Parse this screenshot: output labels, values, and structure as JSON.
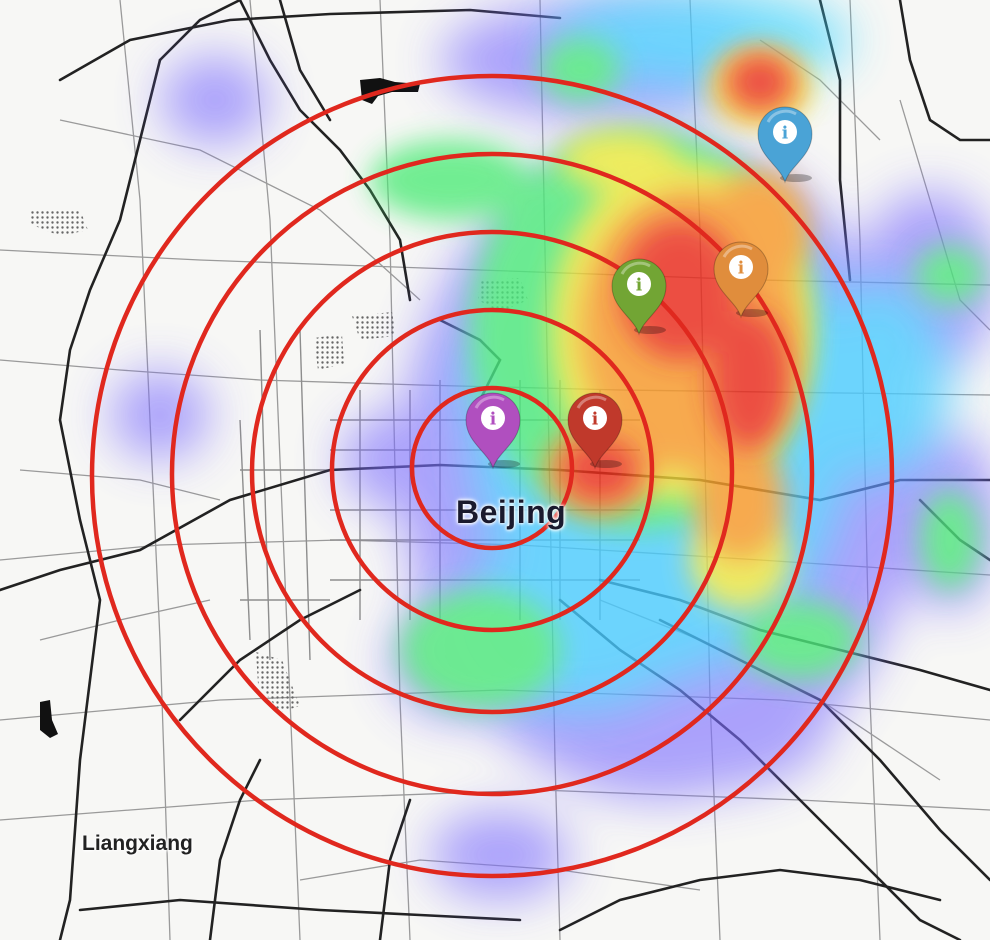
{
  "map": {
    "labels": {
      "major_city": "Beijing",
      "minor_city": "Liangxiang"
    },
    "range_rings": {
      "count": 5,
      "color": "#e0281e"
    },
    "heatmap": {
      "gradient": [
        "#6a5cff",
        "#3fd0ff",
        "#49ea7a",
        "#f6e93a",
        "#f79a2b",
        "#ea2b1f"
      ],
      "intensity_levels": [
        "low",
        "medium-low",
        "medium",
        "medium-high",
        "high"
      ]
    },
    "markers": [
      {
        "name": "purple",
        "color": "#b04fbf",
        "icon": "info-icon",
        "glyph": "i"
      },
      {
        "name": "red",
        "color": "#c0392b",
        "icon": "info-icon",
        "glyph": "i"
      },
      {
        "name": "green",
        "color": "#72a534",
        "icon": "info-icon",
        "glyph": "i"
      },
      {
        "name": "orange",
        "color": "#e08d3c",
        "icon": "info-icon",
        "glyph": "i"
      },
      {
        "name": "blue",
        "color": "#4aa3d6",
        "icon": "info-icon",
        "glyph": "i"
      }
    ]
  }
}
